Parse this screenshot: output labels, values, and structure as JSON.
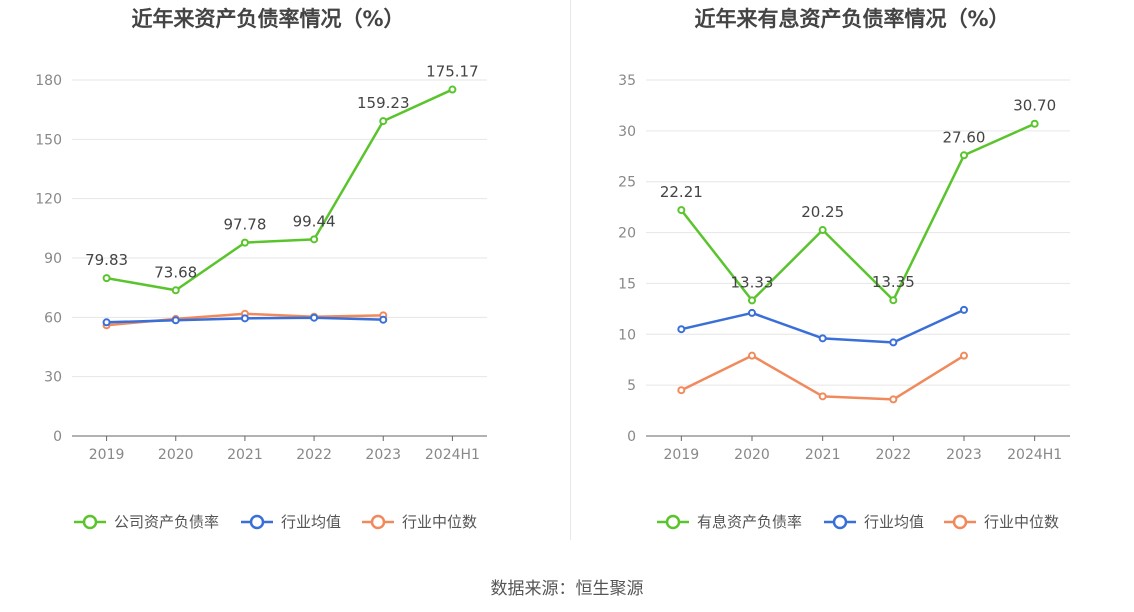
{
  "source_note": "数据来源：恒生聚源",
  "colors": {
    "company": "#5ac42d",
    "avg": "#3a6fd8",
    "median": "#f08a5d",
    "grid": "#e6e6e6",
    "axis": "#666666",
    "tick": "#888888"
  },
  "chart_data": [
    {
      "type": "line",
      "title": "近年来资产负债率情况（%）",
      "categories": [
        "2019",
        "2020",
        "2021",
        "2022",
        "2023",
        "2024H1"
      ],
      "ylim": [
        0,
        180
      ],
      "yticks": [
        0,
        30,
        60,
        90,
        120,
        150,
        180
      ],
      "series": [
        {
          "name": "公司资产负债率",
          "key": "company",
          "labels": true,
          "values": [
            79.83,
            73.68,
            97.78,
            99.44,
            159.23,
            175.17
          ],
          "value_labels": [
            "79.83",
            "73.68",
            "97.78",
            "99.44",
            "159.23",
            "175.17"
          ]
        },
        {
          "name": "行业均值",
          "key": "avg",
          "labels": false,
          "values": [
            57.5,
            58.5,
            59.5,
            59.8,
            58.8,
            null
          ]
        },
        {
          "name": "行业中位数",
          "key": "median",
          "labels": false,
          "values": [
            56.0,
            59.2,
            61.8,
            60.3,
            61.0,
            null
          ]
        }
      ]
    },
    {
      "type": "line",
      "title": "近年来有息资产负债率情况（%）",
      "categories": [
        "2019",
        "2020",
        "2021",
        "2022",
        "2023",
        "2024H1"
      ],
      "ylim": [
        0,
        35
      ],
      "yticks": [
        0,
        5,
        10,
        15,
        20,
        25,
        30,
        35
      ],
      "series": [
        {
          "name": "有息资产负债率",
          "key": "company",
          "labels": true,
          "values": [
            22.21,
            13.33,
            20.25,
            13.35,
            27.6,
            30.7
          ],
          "value_labels": [
            "22.21",
            "13.33",
            "20.25",
            "13.35",
            "27.60",
            "30.70"
          ]
        },
        {
          "name": "行业均值",
          "key": "avg",
          "labels": false,
          "values": [
            10.5,
            12.1,
            9.6,
            9.2,
            12.4,
            null
          ]
        },
        {
          "name": "行业中位数",
          "key": "median",
          "labels": false,
          "values": [
            4.5,
            7.9,
            3.9,
            3.6,
            7.9,
            null
          ]
        }
      ]
    }
  ]
}
